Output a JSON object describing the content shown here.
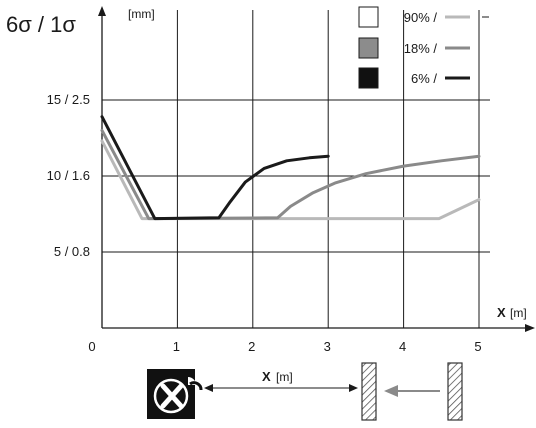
{
  "chart_data": {
    "type": "line",
    "y_title": "6σ / 1σ",
    "y_unit": "[mm]",
    "x_label": "X",
    "x_unit": "[m]",
    "x_ticks": [
      "0",
      "1",
      "2",
      "3",
      "4",
      "5"
    ],
    "y_ticks": [
      {
        "label": "5 / 0.8",
        "value": 5
      },
      {
        "label": "10 / 1.6",
        "value": 10
      },
      {
        "label": "15 / 2.5",
        "value": 15
      }
    ],
    "xlim": [
      0,
      5
    ],
    "ylim": [
      0,
      20
    ],
    "grid": true,
    "legend_position": "top-right",
    "series": [
      {
        "name": "90% /",
        "swatch": "#ffffff",
        "line_color": "#b9b9b9",
        "points": [
          [
            0,
            12.3
          ],
          [
            0.53,
            7.2
          ],
          [
            4.47,
            7.2
          ],
          [
            5,
            8.45
          ]
        ]
      },
      {
        "name": "18% /",
        "swatch": "#8c8c8c",
        "line_color": "#8a8a8a",
        "points": [
          [
            0,
            13.0
          ],
          [
            0.62,
            7.2
          ],
          [
            2.33,
            7.25
          ],
          [
            2.5,
            8.0
          ],
          [
            2.8,
            8.9
          ],
          [
            3.1,
            9.55
          ],
          [
            3.5,
            10.15
          ],
          [
            4.0,
            10.65
          ],
          [
            4.5,
            11.0
          ],
          [
            5,
            11.3
          ]
        ]
      },
      {
        "name": "6% /",
        "swatch": "#111111",
        "line_color": "#1a1a1a",
        "points": [
          [
            0,
            13.9
          ],
          [
            0.7,
            7.2
          ],
          [
            1.55,
            7.25
          ],
          [
            1.7,
            8.3
          ],
          [
            1.9,
            9.6
          ],
          [
            2.15,
            10.5
          ],
          [
            2.45,
            11.0
          ],
          [
            2.75,
            11.2
          ],
          [
            3,
            11.3
          ]
        ]
      }
    ]
  },
  "diagram": {
    "distance_label": "X",
    "distance_unit": "[m]",
    "logo_icon": "x-sensor-logo-icon",
    "arrow_color": "#8a8a8a"
  }
}
